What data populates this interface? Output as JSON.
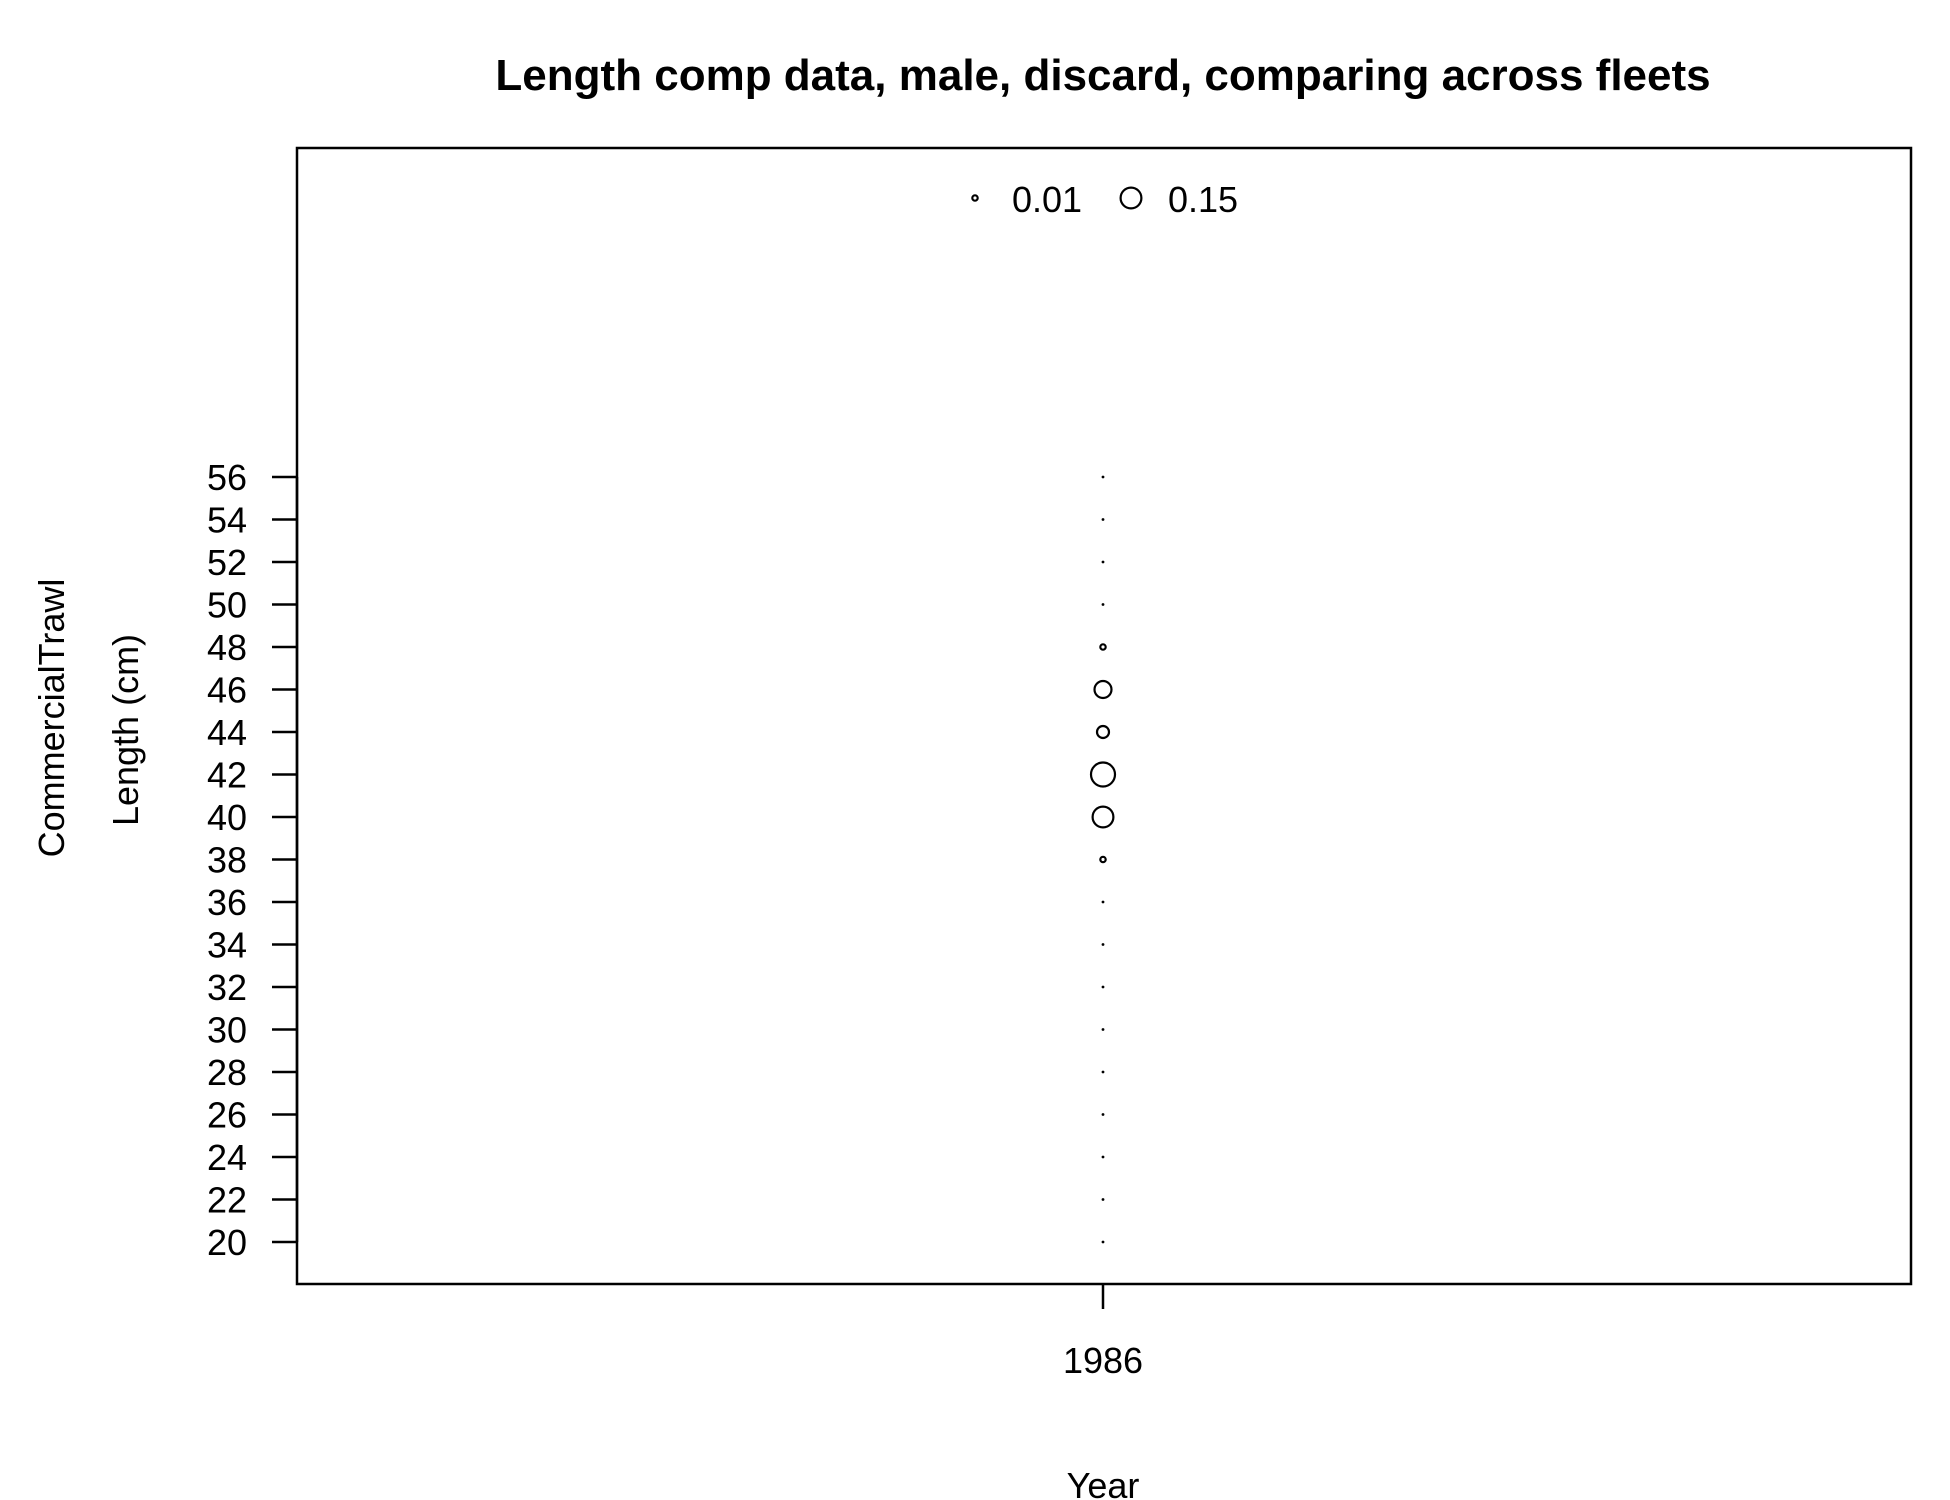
{
  "chart_data": {
    "type": "scatter",
    "subtype": "bubble",
    "title": "Length comp data, male, discard, comparing across fleets",
    "xlabel": "Year",
    "ylabel": "Length (cm)",
    "fleet_label": "CommercialTrawl",
    "x_ticks": [
      "1986"
    ],
    "y_ticks": [
      20,
      22,
      24,
      26,
      28,
      30,
      32,
      34,
      36,
      38,
      40,
      42,
      44,
      46,
      48,
      50,
      52,
      54,
      56
    ],
    "ylim": [
      20,
      56
    ],
    "legend": {
      "position": "top",
      "entries": [
        {
          "label": "0.01",
          "value": 0.01
        },
        {
          "label": "0.15",
          "value": 0.15
        }
      ]
    },
    "series": [
      {
        "x": 1986,
        "points": [
          {
            "y": 20,
            "value": 0.0
          },
          {
            "y": 22,
            "value": 0.0
          },
          {
            "y": 24,
            "value": 0.0
          },
          {
            "y": 26,
            "value": 0.0
          },
          {
            "y": 28,
            "value": 0.0
          },
          {
            "y": 30,
            "value": 0.0
          },
          {
            "y": 32,
            "value": 0.0
          },
          {
            "y": 34,
            "value": 0.0
          },
          {
            "y": 36,
            "value": 0.0
          },
          {
            "y": 38,
            "value": 0.01
          },
          {
            "y": 40,
            "value": 0.15
          },
          {
            "y": 42,
            "value": 0.2
          },
          {
            "y": 44,
            "value": 0.05
          },
          {
            "y": 46,
            "value": 0.1
          },
          {
            "y": 48,
            "value": 0.01
          },
          {
            "y": 50,
            "value": 0.0
          },
          {
            "y": 52,
            "value": 0.0
          },
          {
            "y": 54,
            "value": 0.0
          },
          {
            "y": 56,
            "value": 0.0
          }
        ]
      }
    ]
  }
}
